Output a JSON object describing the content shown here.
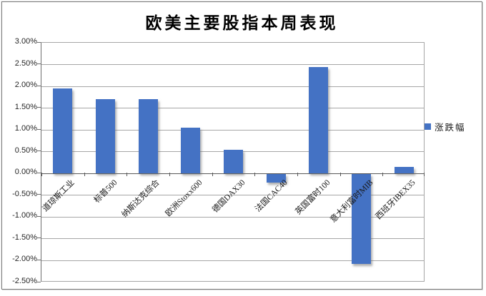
{
  "title": "欧美主要股指本周表现",
  "legend": {
    "label": "涨跌幅",
    "color": "#4472C4"
  },
  "colors": {
    "bar": "#4472C4",
    "gridline": "#a6a6a6",
    "axis": "#595959",
    "text": "#1a1a1a"
  },
  "chart_data": {
    "type": "bar",
    "title": "欧美主要股指本周表现",
    "categories": [
      "道琼斯工业",
      "标普500",
      "纳斯达克综合",
      "欧洲Stoxx600",
      "德国DAX30",
      "法国CAC40",
      "英国富时100",
      "意大利富时MIB",
      "西班牙IBEX35"
    ],
    "series": [
      {
        "name": "涨跌幅",
        "values": [
          1.95,
          1.7,
          1.7,
          1.05,
          0.55,
          -0.2,
          2.45,
          -2.05,
          0.15
        ]
      }
    ],
    "xlabel": "",
    "ylabel": "",
    "ylim": [
      -2.5,
      3.0
    ],
    "ytick_step": 0.5,
    "ytick_labels": [
      "3.00%",
      "2.50%",
      "2.00%",
      "1.50%",
      "1.00%",
      "0.50%",
      "0.00%",
      "-0.50%",
      "-1.00%",
      "-1.50%",
      "-2.00%",
      "-2.50%"
    ],
    "grid": true,
    "legend_position": "right",
    "bar_color": "#4472C4"
  }
}
